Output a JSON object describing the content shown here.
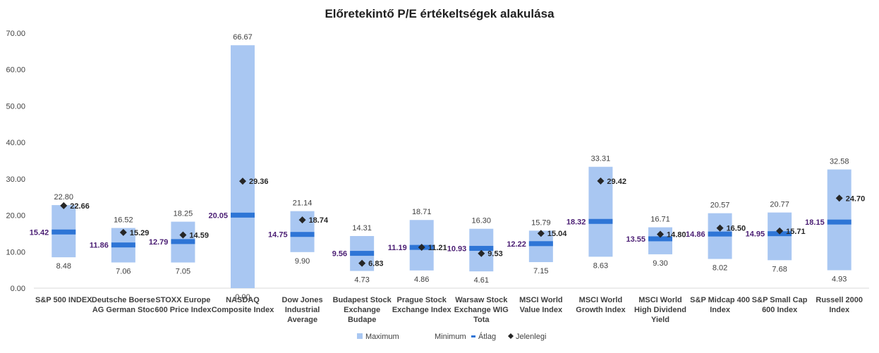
{
  "chart_data": {
    "type": "bar",
    "title": "Előretekintő P/E értékeltségek alakulása",
    "ylim": [
      0,
      70
    ],
    "yticks": [
      "0.00",
      "10.00",
      "20.00",
      "30.00",
      "40.00",
      "50.00",
      "60.00",
      "70.00"
    ],
    "grid": false,
    "legend_position": "bottom",
    "categories": [
      [
        "S&P 500 INDEX"
      ],
      [
        "Deutsche Boerse",
        "AG German Stoc"
      ],
      [
        "STOXX Europe",
        "600 Price Index"
      ],
      [
        "NASDAQ",
        "Composite Index"
      ],
      [
        "Dow Jones",
        "Industrial",
        "Average"
      ],
      [
        "Budapest Stock",
        "Exchange",
        "Budape"
      ],
      [
        "Prague Stock",
        "Exchange Index"
      ],
      [
        "Warsaw Stock",
        "Exchange WIG",
        "Tota"
      ],
      [
        "MSCI World",
        "Value Index"
      ],
      [
        "MSCI World",
        "Growth Index"
      ],
      [
        "MSCI World",
        "High Dividend",
        "Yield"
      ],
      [
        "S&P Midcap 400",
        "Index"
      ],
      [
        "S&P Small Cap",
        "600 Index"
      ],
      [
        "Russell 2000",
        "Index"
      ]
    ],
    "series": [
      {
        "name": "Maximum",
        "values": [
          22.8,
          16.52,
          18.25,
          66.67,
          21.14,
          14.31,
          18.71,
          16.3,
          15.79,
          33.31,
          16.71,
          20.57,
          20.77,
          32.58
        ],
        "labels": [
          "22.80",
          "16.52",
          "18.25",
          "66.67",
          "21.14",
          "14.31",
          "18.71",
          "16.30",
          "15.79",
          "33.31",
          "16.71",
          "20.57",
          "20.77",
          "32.58"
        ]
      },
      {
        "name": "Minimum",
        "values": [
          8.48,
          7.06,
          7.05,
          0.0,
          9.9,
          4.73,
          4.86,
          4.61,
          7.15,
          8.63,
          9.3,
          8.02,
          7.68,
          4.93
        ],
        "labels": [
          "8.48",
          "7.06",
          "7.05",
          "0.00",
          "9.90",
          "4.73",
          "4.86",
          "4.61",
          "7.15",
          "8.63",
          "9.30",
          "8.02",
          "7.68",
          "4.93"
        ]
      },
      {
        "name": "Átlag",
        "values": [
          15.42,
          11.86,
          12.79,
          20.05,
          14.75,
          9.56,
          11.19,
          10.93,
          12.22,
          18.32,
          13.55,
          14.86,
          14.95,
          18.15
        ],
        "labels": [
          "15.42",
          "11.86",
          "12.79",
          "20.05",
          "14.75",
          "9.56",
          "11.19",
          "10.93",
          "12.22",
          "18.32",
          "13.55",
          "14.86",
          "14.95",
          "18.15"
        ]
      },
      {
        "name": "Jelenlegi",
        "values": [
          22.66,
          15.29,
          14.59,
          29.36,
          18.74,
          6.83,
          11.21,
          9.53,
          15.04,
          29.42,
          14.8,
          16.5,
          15.71,
          24.7
        ],
        "labels": [
          "22.66",
          "15.29",
          "14.59",
          "29.36",
          "18.74",
          "6.83",
          "11.21",
          "9.53",
          "15.04",
          "29.42",
          "14.80",
          "16.50",
          "15.71",
          "24.70"
        ]
      }
    ],
    "colors": {
      "range": "#a9c7f2",
      "average": "#2e75d6",
      "current": "#262626",
      "average_label": "#4a1d73"
    }
  }
}
